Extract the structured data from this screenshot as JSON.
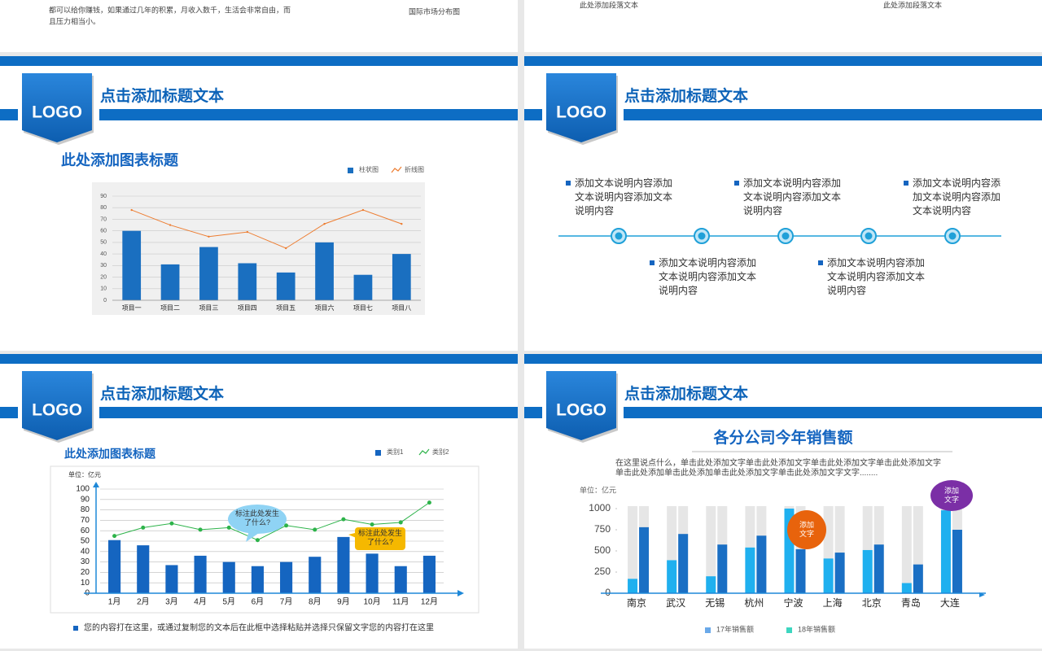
{
  "top_strip": {
    "left_text_lines": [
      "都可以给你赚钱，如果通过几年的积累，月收入数千，生活会非常自由，而",
      "且压力相当小。"
    ],
    "map_caption": "国际市场分布图",
    "paragraph_1": "此处添加段落文本",
    "paragraph_2": "此处添加段落文本"
  },
  "slides": [
    {
      "logo": "LOGO",
      "title": "点击添加标题文本"
    },
    {
      "logo": "LOGO",
      "title": "点击添加标题文本"
    },
    {
      "logo": "LOGO",
      "title": "点击添加标题文本"
    },
    {
      "logo": "LOGO",
      "title": "点击添加标题文本"
    }
  ],
  "timeline": {
    "items": [
      "添加文本说明内容添加文本说明内容添加文本说明内容",
      "添加文本说明内容添加文本说明内容添加文本说明内容",
      "添加文本说明内容添加文本说明内容添加文本说明内容",
      "添加文本说明内容添加文本说明内容添加文本说明内容",
      "添加文本说明内容添加文本说明内容添加文本说明内容"
    ]
  },
  "chart_data": [
    {
      "type": "bar",
      "title": "此处添加图表标题",
      "categories": [
        "项目一",
        "项目二",
        "项目三",
        "项目四",
        "项目五",
        "项目六",
        "项目七",
        "项目八"
      ],
      "series": [
        {
          "name": "柱状图",
          "kind": "bar",
          "color": "#1a6fc0",
          "values": [
            60,
            31,
            46,
            32,
            24,
            50,
            22,
            40
          ]
        },
        {
          "name": "折线图",
          "kind": "line",
          "color": "#ed7d31",
          "values": [
            78,
            65,
            55,
            59,
            45,
            66,
            78,
            66
          ]
        }
      ],
      "ylim": [
        0,
        90
      ],
      "yticks": [
        0,
        10,
        20,
        30,
        40,
        50,
        60,
        70,
        80,
        90
      ],
      "grid": true
    },
    {
      "type": "bar",
      "title": "此处添加图表标题",
      "unit": "单位：亿元",
      "categories": [
        "1月",
        "2月",
        "3月",
        "4月",
        "5月",
        "6月",
        "7月",
        "8月",
        "9月",
        "10月",
        "11月",
        "12月"
      ],
      "series": [
        {
          "name": "类别1",
          "kind": "bar",
          "color": "#1565c0",
          "values": [
            51,
            46,
            27,
            36,
            30,
            26,
            30,
            35,
            54,
            38,
            26,
            36
          ]
        },
        {
          "name": "类别2",
          "kind": "line",
          "color": "#2db34a",
          "values": [
            55,
            63,
            67,
            61,
            63,
            51,
            65,
            61,
            71,
            66,
            68,
            87
          ]
        }
      ],
      "ylim": [
        0,
        100
      ],
      "yticks": [
        0,
        10,
        20,
        30,
        40,
        50,
        60,
        70,
        80,
        90,
        100
      ],
      "grid": true,
      "annotations": [
        "标注此处发生了什么?",
        "标注此处发生了什么?"
      ],
      "footnote": "您的内容打在这里，或通过复制您的文本后在此框中选择粘贴并选择只保留文字您的内容打在这里"
    },
    {
      "type": "grouped-bar",
      "title": "各分公司今年销售额",
      "description": "在这里说点什么，单击此处添加文字单击此处添加文字单击此处添加文字单击此处添加文字单击此处添加单击此处添加单击此处添加文字单击此处添加文字文字........",
      "unit": "单位：亿元",
      "categories": [
        "南京",
        "武汉",
        "无锡",
        "杭州",
        "宁波",
        "上海",
        "北京",
        "青岛",
        "大连"
      ],
      "series": [
        {
          "name": "17年销售额",
          "color": "#1fb0ef",
          "legend_color": "#6aa9e9",
          "values": [
            170,
            390,
            200,
            540,
            1000,
            410,
            510,
            120,
            980
          ]
        },
        {
          "name": "18年销售额",
          "color": "#1a6fc4",
          "legend_color": "#3dd6c0",
          "values": [
            780,
            700,
            575,
            680,
            520,
            480,
            575,
            340,
            750
          ]
        }
      ],
      "ylim": [
        0,
        1000
      ],
      "yticks": [
        0,
        250,
        500,
        750,
        1000
      ],
      "grid": false,
      "annotations": [
        "添加文字",
        "添加文字"
      ]
    }
  ]
}
